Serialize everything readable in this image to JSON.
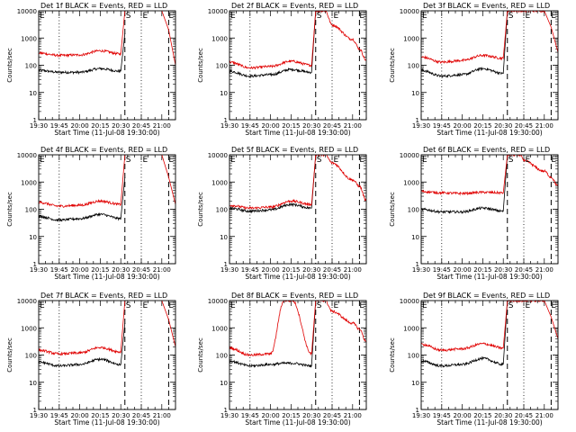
{
  "figure": {
    "x_axis_label": "Start Time (11-Jul-08 19:30:00)",
    "y_axis_label": "Counts/sec",
    "x_tick_labels": [
      "19:30",
      "19:45",
      "20:00",
      "20:15",
      "20:30",
      "20:45",
      "21:00"
    ],
    "y_tick_labels": [
      "1",
      "10",
      "100",
      "1000",
      "10000"
    ],
    "colors": {
      "events": "#000000",
      "lld": "#e00000",
      "axes": "#000000",
      "background": "#ffffff"
    },
    "marker_labels": [
      "E",
      "S",
      "E",
      "E"
    ]
  },
  "chart_data": [
    {
      "type": "line",
      "title": "Det 1f BLACK = Events, RED = LLD",
      "xlabel": "Start Time (11-Jul-08 19:30:00)",
      "ylabel": "Counts/sec",
      "xlim": [
        "19:30",
        "21:10"
      ],
      "ylim": [
        1,
        10000
      ],
      "y_scale": "log",
      "x": [
        "19:30",
        "19:45",
        "20:00",
        "20:15",
        "20:30",
        "20:33",
        "20:55",
        "21:00",
        "21:05",
        "21:10"
      ],
      "series": [
        {
          "name": "Events",
          "color": "#000000",
          "values": [
            65,
            55,
            55,
            75,
            60,
            1500,
            null,
            null,
            null,
            null
          ]
        },
        {
          "name": "LLD",
          "color": "#e00000",
          "values": [
            280,
            230,
            240,
            340,
            260,
            10000,
            null,
            10000,
            2000,
            100
          ]
        }
      ],
      "marker_lines": [
        {
          "style": "dotted",
          "x": "19:45"
        },
        {
          "style": "dashed",
          "x": "20:33"
        },
        {
          "style": "dotted",
          "x": "20:45"
        },
        {
          "style": "dashed",
          "x": "21:05"
        }
      ],
      "annotations": [
        "E",
        "S",
        "E",
        "E"
      ]
    },
    {
      "type": "line",
      "title": "Det 2f BLACK = Events, RED = LLD",
      "xlabel": "Start Time (11-Jul-08 19:30:00)",
      "ylabel": "Counts/sec",
      "xlim": [
        "19:30",
        "21:10"
      ],
      "ylim": [
        1,
        10000
      ],
      "y_scale": "log",
      "x": [
        "19:30",
        "19:45",
        "20:00",
        "20:15",
        "20:30",
        "20:33",
        "20:40",
        "20:45",
        "21:00",
        "21:05",
        "21:10"
      ],
      "series": [
        {
          "name": "Events",
          "color": "#000000",
          "values": [
            60,
            40,
            45,
            70,
            55,
            10000,
            null,
            null,
            null,
            null,
            null
          ]
        },
        {
          "name": "LLD",
          "color": "#e00000",
          "values": [
            130,
            80,
            90,
            140,
            100,
            10000,
            10000,
            3000,
            900,
            400,
            150
          ]
        }
      ],
      "marker_lines": [
        {
          "style": "dotted",
          "x": "19:45"
        },
        {
          "style": "dashed",
          "x": "20:33"
        },
        {
          "style": "dotted",
          "x": "20:45"
        },
        {
          "style": "dashed",
          "x": "21:05"
        }
      ],
      "annotations": [
        "E",
        "S",
        "E",
        "E"
      ]
    },
    {
      "type": "line",
      "title": "Det 3f BLACK = Events, RED = LLD",
      "xlabel": "Start Time (11-Jul-08 19:30:00)",
      "ylabel": "Counts/sec",
      "xlim": [
        "19:30",
        "21:10"
      ],
      "ylim": [
        1,
        10000
      ],
      "y_scale": "log",
      "x": [
        "19:30",
        "19:45",
        "20:00",
        "20:15",
        "20:30",
        "20:33",
        "21:00",
        "21:05",
        "21:10"
      ],
      "series": [
        {
          "name": "Events",
          "color": "#000000",
          "values": [
            65,
            40,
            45,
            75,
            50,
            10000,
            null,
            null,
            null
          ]
        },
        {
          "name": "LLD",
          "color": "#e00000",
          "values": [
            200,
            130,
            150,
            230,
            180,
            10000,
            10000,
            2500,
            300
          ]
        }
      ],
      "marker_lines": [
        {
          "style": "dotted",
          "x": "19:45"
        },
        {
          "style": "dashed",
          "x": "20:33"
        },
        {
          "style": "dotted",
          "x": "20:45"
        },
        {
          "style": "dashed",
          "x": "21:05"
        }
      ],
      "annotations": [
        "E",
        "S",
        "E",
        "E"
      ]
    },
    {
      "type": "line",
      "title": "Det 4f BLACK = Events, RED = LLD",
      "xlabel": "Start Time (11-Jul-08 19:30:00)",
      "ylabel": "Counts/sec",
      "xlim": [
        "19:30",
        "21:10"
      ],
      "ylim": [
        1,
        10000
      ],
      "y_scale": "log",
      "x": [
        "19:30",
        "19:45",
        "20:00",
        "20:15",
        "20:30",
        "20:33",
        "20:55",
        "21:00",
        "21:05",
        "21:10"
      ],
      "series": [
        {
          "name": "Events",
          "color": "#000000",
          "values": [
            55,
            40,
            45,
            65,
            45,
            1500,
            null,
            null,
            null,
            null
          ]
        },
        {
          "name": "LLD",
          "color": "#e00000",
          "values": [
            180,
            130,
            140,
            200,
            150,
            10000,
            null,
            10000,
            1500,
            150
          ]
        }
      ],
      "marker_lines": [
        {
          "style": "dotted",
          "x": "19:45"
        },
        {
          "style": "dashed",
          "x": "20:33"
        },
        {
          "style": "dotted",
          "x": "20:45"
        },
        {
          "style": "dashed",
          "x": "21:05"
        }
      ],
      "annotations": [
        "E",
        "S",
        "E",
        "E"
      ]
    },
    {
      "type": "line",
      "title": "Det 5f BLACK = Events, RED = LLD",
      "xlabel": "Start Time (11-Jul-08 19:30:00)",
      "ylabel": "Counts/sec",
      "xlim": [
        "19:30",
        "21:10"
      ],
      "ylim": [
        1,
        10000
      ],
      "y_scale": "log",
      "x": [
        "19:30",
        "19:45",
        "20:00",
        "20:15",
        "20:30",
        "20:33",
        "20:40",
        "20:45",
        "21:00",
        "21:05",
        "21:10"
      ],
      "series": [
        {
          "name": "Events",
          "color": "#000000",
          "values": [
            110,
            85,
            95,
            150,
            110,
            10000,
            null,
            null,
            null,
            null,
            null
          ]
        },
        {
          "name": "LLD",
          "color": "#e00000",
          "values": [
            140,
            110,
            120,
            200,
            150,
            10000,
            10000,
            5000,
            1200,
            700,
            200
          ]
        }
      ],
      "marker_lines": [
        {
          "style": "dotted",
          "x": "19:45"
        },
        {
          "style": "dashed",
          "x": "20:33"
        },
        {
          "style": "dotted",
          "x": "20:45"
        },
        {
          "style": "dashed",
          "x": "21:05"
        }
      ],
      "annotations": [
        "E",
        "S",
        "E",
        "E"
      ]
    },
    {
      "type": "line",
      "title": "Det 6f BLACK = Events, RED = LLD",
      "xlabel": "Start Time (11-Jul-08 19:30:00)",
      "ylabel": "Counts/sec",
      "xlim": [
        "19:30",
        "21:10"
      ],
      "ylim": [
        1,
        10000
      ],
      "y_scale": "log",
      "x": [
        "19:30",
        "19:45",
        "20:00",
        "20:15",
        "20:30",
        "20:33",
        "20:43",
        "20:45",
        "21:00",
        "21:05",
        "21:10"
      ],
      "series": [
        {
          "name": "Events",
          "color": "#000000",
          "values": [
            100,
            80,
            80,
            110,
            85,
            10000,
            null,
            null,
            null,
            null,
            null
          ]
        },
        {
          "name": "LLD",
          "color": "#e00000",
          "values": [
            450,
            400,
            380,
            420,
            400,
            10000,
            10000,
            6000,
            2500,
            1500,
            700
          ]
        }
      ],
      "marker_lines": [
        {
          "style": "dotted",
          "x": "19:45"
        },
        {
          "style": "dashed",
          "x": "20:33"
        },
        {
          "style": "dotted",
          "x": "20:45"
        },
        {
          "style": "dashed",
          "x": "21:05"
        }
      ],
      "annotations": [
        "E",
        "S",
        "E",
        "E"
      ]
    },
    {
      "type": "line",
      "title": "Det 7f BLACK = Events, RED = LLD",
      "xlabel": "Start Time (11-Jul-08 19:30:00)",
      "ylabel": "Counts/sec",
      "xlim": [
        "19:30",
        "21:10"
      ],
      "ylim": [
        1,
        10000
      ],
      "y_scale": "log",
      "x": [
        "19:30",
        "19:45",
        "20:00",
        "20:15",
        "20:30",
        "20:33",
        "20:55",
        "21:00",
        "21:05",
        "21:10"
      ],
      "series": [
        {
          "name": "Events",
          "color": "#000000",
          "values": [
            55,
            40,
            45,
            70,
            45,
            1500,
            null,
            null,
            null,
            null
          ]
        },
        {
          "name": "LLD",
          "color": "#e00000",
          "values": [
            150,
            110,
            120,
            190,
            130,
            10000,
            null,
            10000,
            2000,
            200
          ]
        }
      ],
      "marker_lines": [
        {
          "style": "dotted",
          "x": "19:45"
        },
        {
          "style": "dashed",
          "x": "20:33"
        },
        {
          "style": "dotted",
          "x": "20:45"
        },
        {
          "style": "dashed",
          "x": "21:05"
        }
      ],
      "annotations": [
        "E",
        "S",
        "E",
        "E"
      ]
    },
    {
      "type": "line",
      "title": "Det 8f BLACK = Events, RED = LLD",
      "xlabel": "Start Time (11-Jul-08 19:30:00)",
      "ylabel": "Counts/sec",
      "xlim": [
        "19:30",
        "21:10"
      ],
      "ylim": [
        1,
        10000
      ],
      "y_scale": "log",
      "x": [
        "19:30",
        "19:45",
        "20:00",
        "20:10",
        "20:16",
        "20:30",
        "20:33",
        "20:40",
        "20:45",
        "21:00",
        "21:05",
        "21:10"
      ],
      "series": [
        {
          "name": "Events",
          "color": "#000000",
          "values": [
            60,
            40,
            45,
            50,
            50,
            40,
            10000,
            null,
            null,
            null,
            null,
            null
          ]
        },
        {
          "name": "LLD",
          "color": "#e00000",
          "values": [
            180,
            100,
            110,
            10000,
            10000,
            110,
            10000,
            10000,
            4000,
            1500,
            900,
            300
          ]
        }
      ],
      "marker_lines": [
        {
          "style": "dotted",
          "x": "19:45"
        },
        {
          "style": "dashed",
          "x": "20:33"
        },
        {
          "style": "dotted",
          "x": "20:45"
        },
        {
          "style": "dashed",
          "x": "21:05"
        }
      ],
      "annotations": [
        "E",
        "S",
        "E",
        "E"
      ]
    },
    {
      "type": "line",
      "title": "Det 9f BLACK = Events, RED = LLD",
      "xlabel": "Start Time (11-Jul-08 19:30:00)",
      "ylabel": "Counts/sec",
      "xlim": [
        "19:30",
        "21:10"
      ],
      "ylim": [
        1,
        10000
      ],
      "y_scale": "log",
      "x": [
        "19:30",
        "19:45",
        "20:00",
        "20:15",
        "20:30",
        "20:33",
        "21:00",
        "21:05",
        "21:10"
      ],
      "series": [
        {
          "name": "Events",
          "color": "#000000",
          "values": [
            60,
            40,
            45,
            75,
            45,
            10000,
            null,
            null,
            null
          ]
        },
        {
          "name": "LLD",
          "color": "#e00000",
          "values": [
            250,
            150,
            170,
            260,
            180,
            10000,
            10000,
            2500,
            400
          ]
        }
      ],
      "marker_lines": [
        {
          "style": "dotted",
          "x": "19:45"
        },
        {
          "style": "dashed",
          "x": "20:33"
        },
        {
          "style": "dotted",
          "x": "20:45"
        },
        {
          "style": "dashed",
          "x": "21:05"
        }
      ],
      "annotations": [
        "E",
        "S",
        "E",
        "E"
      ]
    }
  ]
}
